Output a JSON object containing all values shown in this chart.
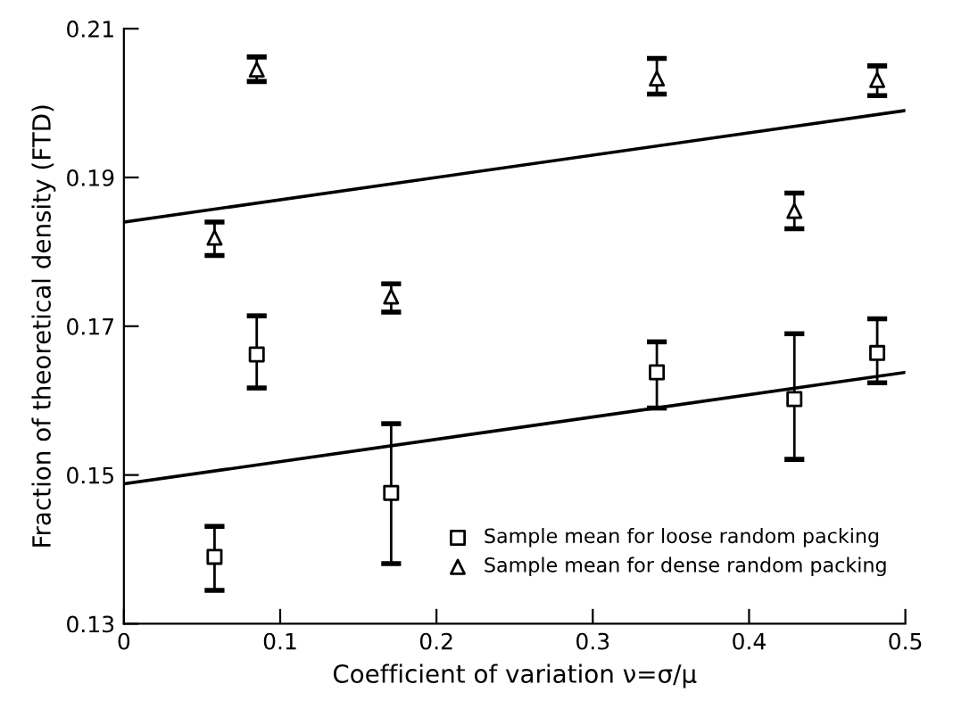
{
  "chart_data": {
    "type": "scatter",
    "xlabel": "Coefficient of variation ν=σ/μ",
    "ylabel": "Fraction of theoretical density (FTD)",
    "xlim": [
      0,
      0.5
    ],
    "ylim": [
      0.13,
      0.21
    ],
    "xticks": [
      0,
      0.1,
      0.2,
      0.3,
      0.4,
      0.5
    ],
    "yticks": [
      0.13,
      0.15,
      0.17,
      0.19,
      0.21
    ],
    "grid": false,
    "legend": "bottom right",
    "series": [
      {
        "name": "Sample mean for loose random packing",
        "color": "#000000",
        "marker": "square",
        "x": [
          0.058,
          0.085,
          0.171,
          0.341,
          0.429,
          0.482
        ],
        "values": [
          0.139,
          0.1662,
          0.1476,
          0.1638,
          0.1602,
          0.1664
        ],
        "errors": [
          [
            0.1345,
            0.1431
          ],
          [
            0.1617,
            0.1714
          ],
          [
            0.1381,
            0.1569
          ],
          [
            0.159,
            0.1679
          ],
          [
            0.1521,
            0.169
          ],
          [
            0.1624,
            0.171
          ]
        ]
      },
      {
        "name": "Sample mean for dense random packing",
        "color": "#000000",
        "marker": "triangle",
        "x": [
          0.058,
          0.085,
          0.171,
          0.341,
          0.429,
          0.482
        ],
        "values": [
          0.1819,
          0.2045,
          0.174,
          0.2033,
          0.1855,
          0.2031
        ],
        "errors": [
          [
            0.1795,
            0.184
          ],
          [
            0.2029,
            0.2062
          ],
          [
            0.1719,
            0.1757
          ],
          [
            0.2012,
            0.206
          ],
          [
            0.1831,
            0.1879
          ],
          [
            0.201,
            0.205
          ]
        ]
      },
      {
        "type": "line",
        "color": "#000000",
        "marker": "none",
        "x": [
          0,
          0.5
        ],
        "values": [
          0.1488,
          0.1638
        ]
      },
      {
        "type": "line",
        "color": "#000000",
        "marker": "none",
        "x": [
          0,
          0.5
        ],
        "values": [
          0.184,
          0.199
        ]
      }
    ]
  }
}
